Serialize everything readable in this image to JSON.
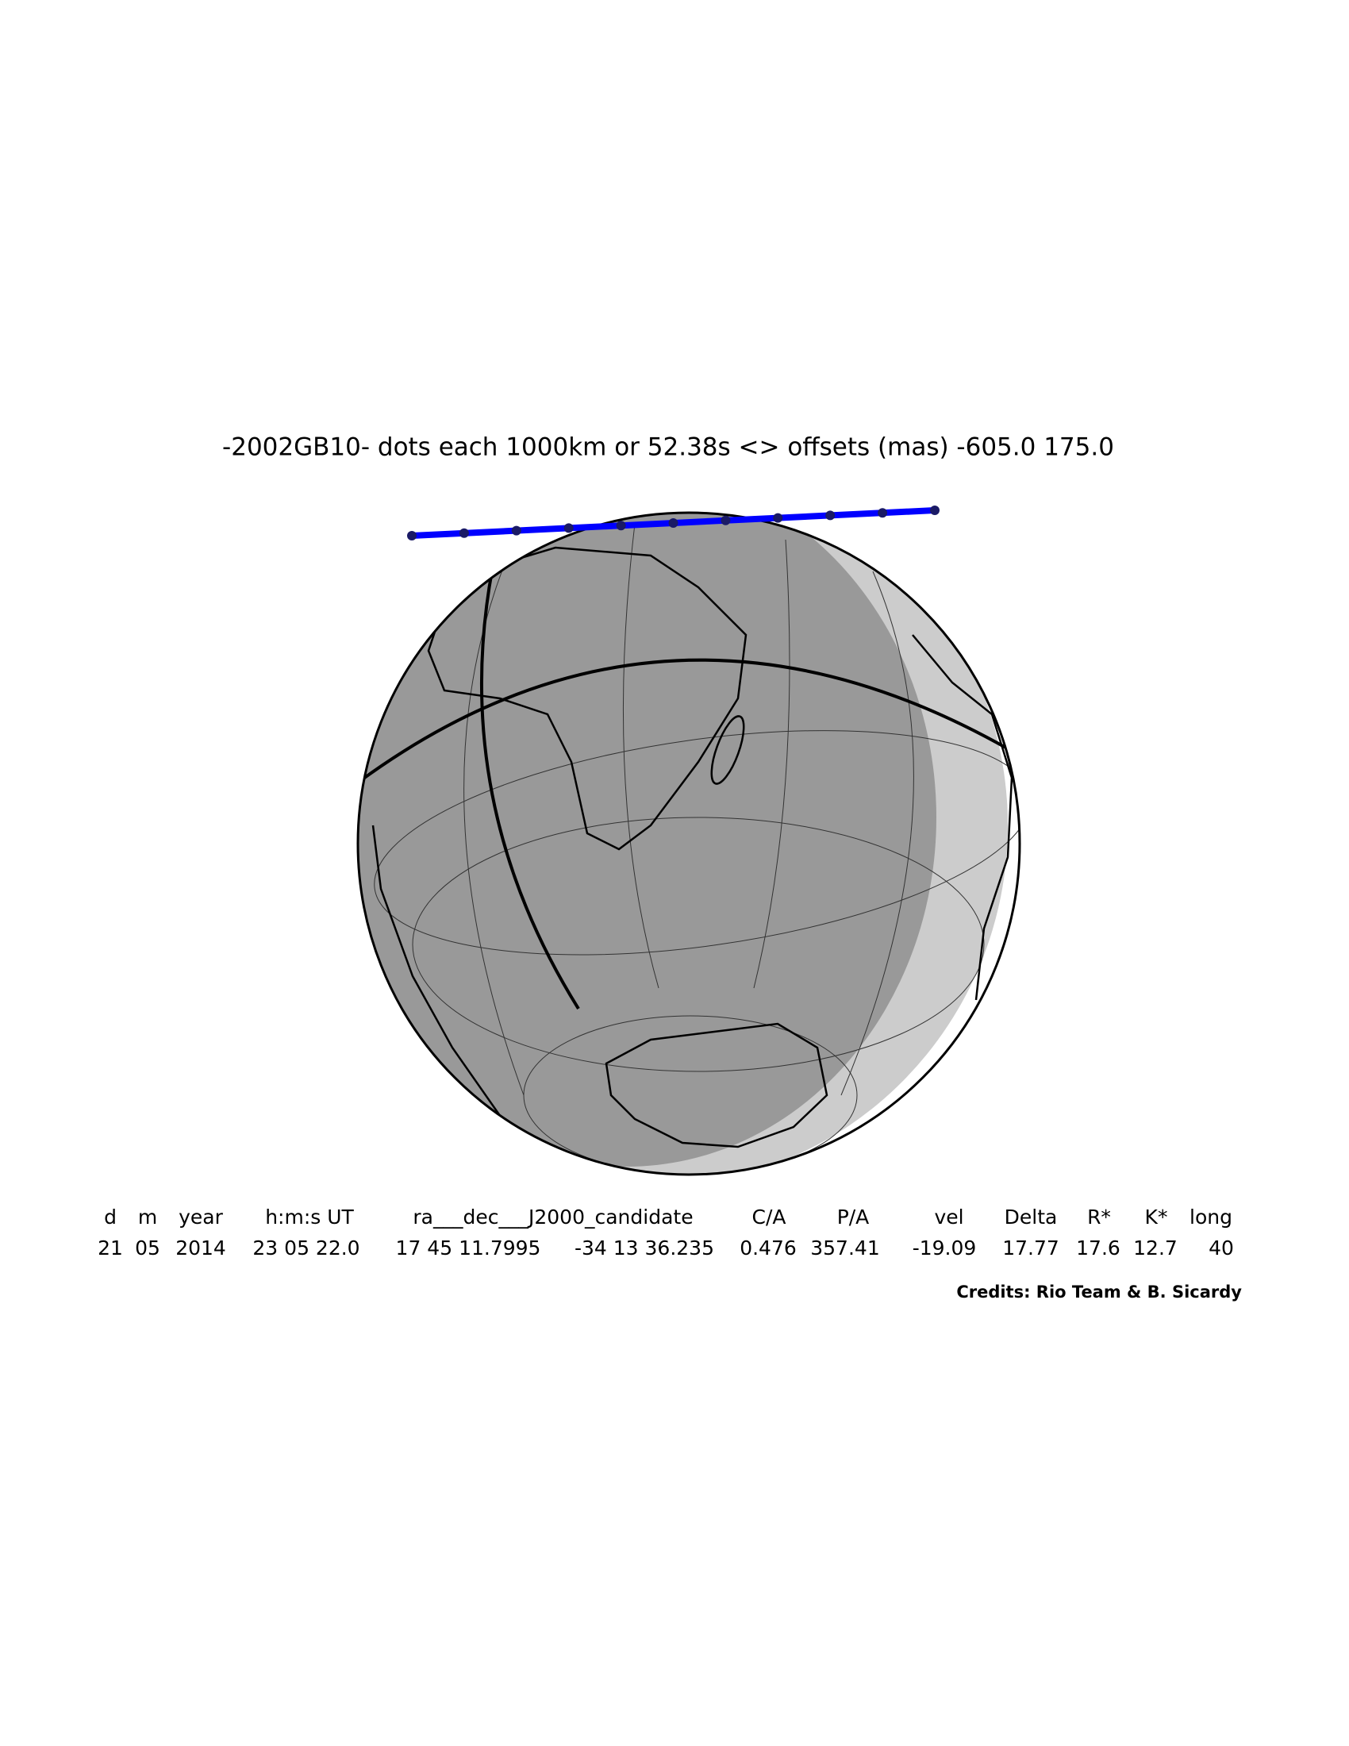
{
  "title": "-2002GB10- dots each 1000km or 52.38s <> offsets (mas) -605.0  175.0",
  "table": {
    "header": [
      "d",
      "m",
      "year",
      "h:m:s UT",
      "ra___dec___J2000_candidate",
      "C/A",
      "P/A",
      "vel",
      "Delta",
      "R*",
      "K*",
      "long"
    ],
    "values": [
      "21",
      "05",
      "2014",
      "23 05 22.0",
      "17 45 11.7995",
      "-34 13 36.235",
      "0.476",
      "357.41",
      "-19.09",
      "17.77",
      "17.6",
      "12.7",
      "40"
    ]
  },
  "credits": "Credits: Rio Team & B. Sicardy"
}
